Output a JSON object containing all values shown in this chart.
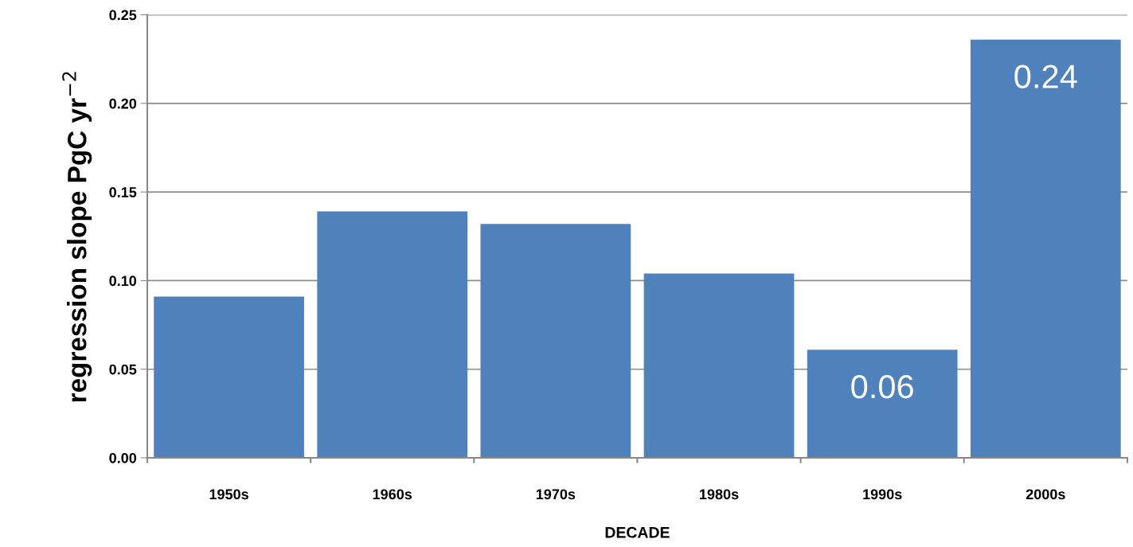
{
  "chart_data": {
    "type": "bar",
    "xlabel": "DECADE",
    "ylabel": "regression slope PgC yr$^{−2}$",
    "categories": [
      "1950s",
      "1960s",
      "1970s",
      "1980s",
      "1990s",
      "2000s"
    ],
    "values": [
      0.091,
      0.139,
      0.132,
      0.104,
      0.061,
      0.236
    ],
    "value_labels": [
      null,
      null,
      null,
      null,
      "0.06",
      "0.24"
    ],
    "color": "#4f81bd",
    "ylim": [
      0,
      0.25
    ],
    "yticks": [
      {
        "value": 0,
        "label": "0.00"
      },
      {
        "value": 0.05,
        "label": "0.05"
      },
      {
        "value": 0.1,
        "label": "0.10"
      },
      {
        "value": 0.15,
        "label": "0.15"
      },
      {
        "value": 0.2,
        "label": "0.20"
      },
      {
        "value": 0.25,
        "label": "0.25"
      }
    ],
    "grid": "y",
    "legend": false
  }
}
